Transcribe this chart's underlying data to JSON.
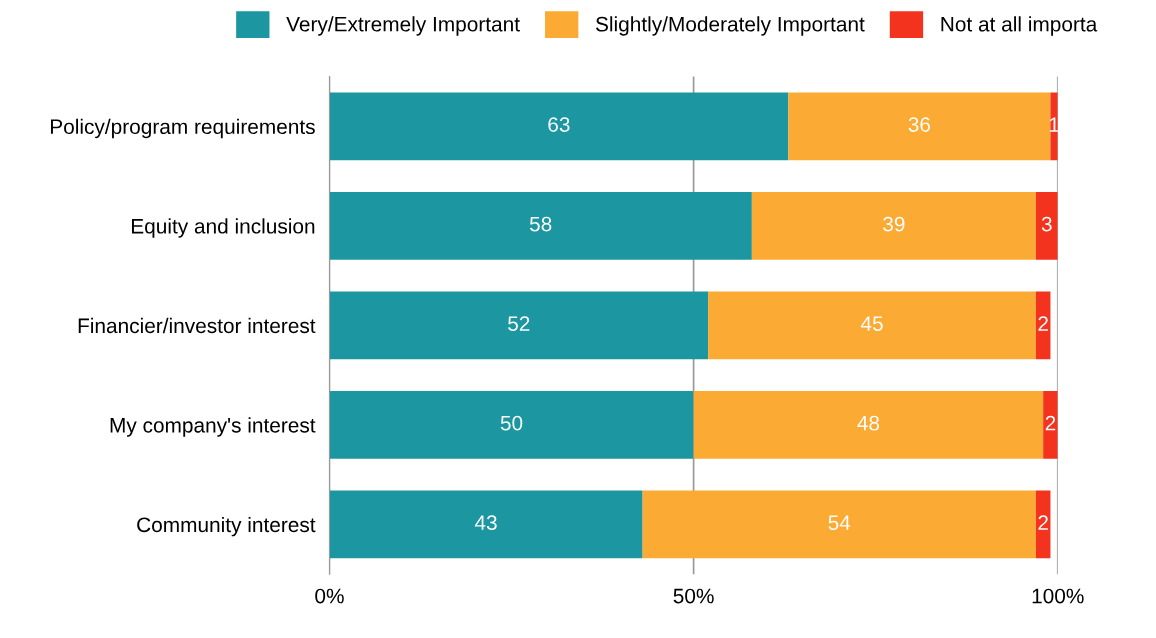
{
  "chart_data": {
    "type": "bar",
    "orientation": "horizontal",
    "stacked": true,
    "categories": [
      "Policy/program requirements",
      "Equity and inclusion",
      "Financier/investor interest",
      "My company's interest",
      "Community interest"
    ],
    "series": [
      {
        "name": "Very/Extremely Important",
        "color": "#1c97a1",
        "values": [
          63,
          58,
          52,
          50,
          43
        ]
      },
      {
        "name": "Slightly/Moderately Important",
        "color": "#fbab34",
        "values": [
          36,
          39,
          45,
          48,
          54
        ]
      },
      {
        "name": "Not at all importa",
        "color": "#f4331f",
        "values": [
          1,
          3,
          2,
          2,
          2
        ]
      }
    ],
    "xlim": [
      0,
      100
    ],
    "xticks": [
      {
        "value": 0,
        "label": "0%"
      },
      {
        "value": 50,
        "label": "50%"
      },
      {
        "value": 100,
        "label": "100%"
      }
    ],
    "data_labels": true,
    "grid": "x",
    "legend": "top right"
  }
}
